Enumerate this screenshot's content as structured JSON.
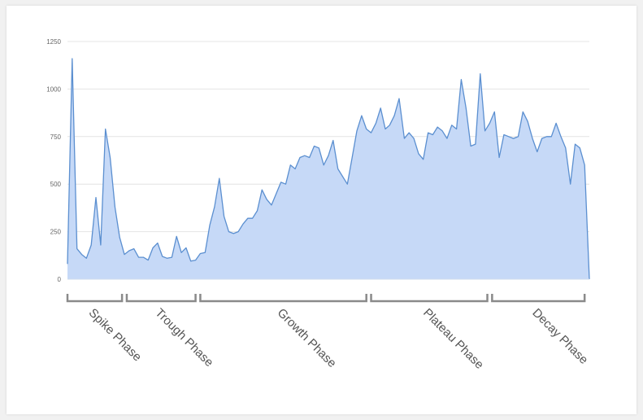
{
  "chart_data": {
    "type": "area",
    "title": "",
    "xlabel": "",
    "ylabel": "",
    "ylim": [
      0,
      1250
    ],
    "y_ticks": [
      0,
      250,
      500,
      750,
      1000,
      1250
    ],
    "y_tick_labels": [
      "0",
      "250",
      "500",
      "750",
      "1000",
      "1250"
    ],
    "grid": true,
    "legend": "none",
    "colors": {
      "fill": "#c6d9f7",
      "line": "#5b8fd0",
      "grid": "#e4e4e4",
      "bracket": "#8a8a8a"
    },
    "x": [
      0,
      1,
      2,
      3,
      4,
      5,
      6,
      7,
      8,
      9,
      10,
      11,
      12,
      13,
      14,
      15,
      16,
      17,
      18,
      19,
      20,
      21,
      22,
      23,
      24,
      25,
      26,
      27,
      28,
      29,
      30,
      31,
      32,
      33,
      34,
      35,
      36,
      37,
      38,
      39,
      40,
      41,
      42,
      43,
      44,
      45,
      46,
      47,
      48,
      49,
      50,
      51,
      52,
      53,
      54,
      55,
      56,
      57,
      58,
      59,
      60,
      61,
      62,
      63,
      64,
      65,
      66,
      67,
      67.9,
      68.9,
      69.9,
      71,
      72,
      73,
      74,
      75,
      76,
      77,
      78,
      79,
      80,
      81,
      82,
      83,
      84,
      85,
      86,
      87,
      88,
      89,
      90,
      91,
      92,
      93,
      94,
      95,
      96,
      97,
      98,
      99,
      100,
      101,
      102,
      103,
      104,
      105,
      106,
      107,
      108,
      109,
      110
    ],
    "series": [
      {
        "values": [
          80,
          1160,
          160,
          130,
          110,
          180,
          430,
          180,
          790,
          640,
          380,
          220,
          130,
          150,
          160,
          115,
          115,
          100,
          165,
          190,
          120,
          110,
          115,
          225,
          140,
          165,
          95,
          100,
          135,
          140,
          285,
          380,
          530,
          330,
          250,
          240,
          250,
          290,
          320,
          320,
          360,
          470,
          420,
          390,
          450,
          510,
          500,
          600,
          580,
          640,
          650,
          640,
          700,
          690,
          600,
          650,
          730,
          580,
          540,
          500,
          640,
          780,
          860,
          790,
          770,
          820,
          900,
          790,
          810,
          860,
          950,
          740,
          770,
          740,
          660,
          630,
          770,
          760,
          800,
          780,
          740,
          810,
          790,
          1050,
          900,
          700,
          710,
          1080,
          780,
          820,
          880,
          640,
          760,
          750,
          740,
          750,
          880,
          830,
          740,
          670,
          740,
          750,
          750,
          820,
          750,
          690,
          500,
          710,
          690,
          600,
          0
        ]
      }
    ],
    "phases": [
      {
        "label": "Spike Phase",
        "start": 0,
        "end": 11.5
      },
      {
        "label": "Trough Phase",
        "start": 12.5,
        "end": 27
      },
      {
        "label": "Growth Phase",
        "start": 28,
        "end": 63
      },
      {
        "label": "Plateau Phase",
        "start": 64,
        "end": 88.5
      },
      {
        "label": "Decay Phase",
        "start": 89.5,
        "end": 109
      }
    ]
  }
}
